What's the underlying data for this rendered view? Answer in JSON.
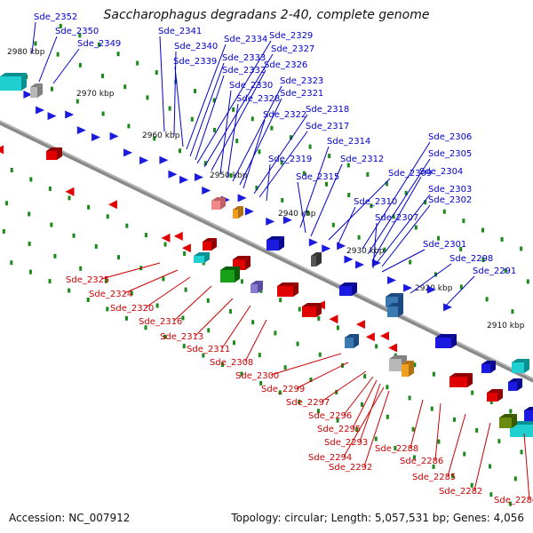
{
  "title": "Saccharophagus degradans 2-40, complete genome",
  "footer": {
    "accession": "Accession: NC_007912",
    "summary": "Topology: circular; Length: 5,057,531 bp; Genes: 4,056"
  },
  "colors": {
    "forward": "#1a1ae0",
    "reverse": "#e00000",
    "backbone": "#8a8a8a",
    "tick": "#1a8a1a",
    "forward_label": "#0000cc",
    "reverse_label": "#cc0000",
    "cyan_feature": "#20d0d0",
    "green_feature": "#18a018"
  },
  "scale_labels": [
    "2980 kbp",
    "2970 kbp",
    "2960 kbp",
    "2950 kbp",
    "2940 kbp",
    "2930 kbp",
    "2920 kbp",
    "2910 kbp"
  ],
  "forward_genes": [
    "Sde_2352",
    "Sde_2350",
    "Sde_2349",
    "Sde_2341",
    "Sde_2340",
    "Sde_2339",
    "Sde_2334",
    "Sde_2333",
    "Sde_2332",
    "Sde_2329",
    "Sde_2327",
    "Sde_2326",
    "Sde_2330",
    "Sde_2328",
    "Sde_2323",
    "Sde_2321",
    "Sde_2322",
    "Sde_2318",
    "Sde_2317",
    "Sde_2319",
    "Sde_2314",
    "Sde_2315",
    "Sde_2312",
    "Sde_2309",
    "Sde_2310",
    "Sde_2306",
    "Sde_2305",
    "Sde_2304",
    "Sde_2303",
    "Sde_2302",
    "Sde_2307",
    "Sde_2301",
    "Sde_2298",
    "Sde_2291"
  ],
  "reverse_genes": [
    "Sde_2325",
    "Sde_2324",
    "Sde_2320",
    "Sde_2316",
    "Sde_2313",
    "Sde_2311",
    "Sde_2308",
    "Sde_2300",
    "Sde_2299",
    "Sde_2297",
    "Sde_2296",
    "Sde_2295",
    "Sde_2293",
    "Sde_2294",
    "Sde_2292",
    "Sde_2288",
    "Sde_2286",
    "Sde_2285",
    "Sde_2282",
    "Sde_2280"
  ]
}
